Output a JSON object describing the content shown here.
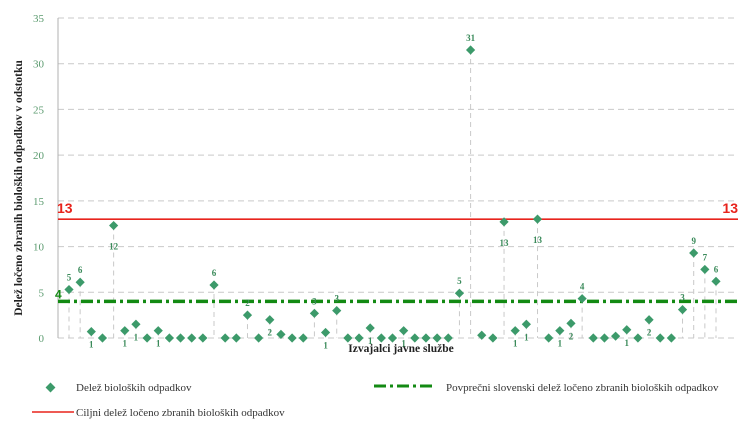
{
  "chart_data": {
    "type": "scatter",
    "xlabel": "Izvajalci javne službe",
    "ylabel": "Delež ločeno zbranih bioloških odpadkov v odstotku",
    "ylim": [
      0,
      35
    ],
    "yticks": [
      "0",
      "5",
      "10",
      "15",
      "20",
      "25",
      "30",
      "35"
    ],
    "grid": true,
    "series": [
      {
        "name": "Delež bioloških odpadkov",
        "color": "#3c9a6a",
        "marker": "diamond",
        "values": [
          5.3,
          6.1,
          0.7,
          0.0,
          12.3,
          0.8,
          1.5,
          0.0,
          0.8,
          0.0,
          0.0,
          0.0,
          0.0,
          5.8,
          0.0,
          0.0,
          2.5,
          0.0,
          2.0,
          0.4,
          0.0,
          0.0,
          2.7,
          0.6,
          3.0,
          0.0,
          0.0,
          1.1,
          0.0,
          0.0,
          0.8,
          0.0,
          0.0,
          0.0,
          0.0,
          4.9,
          31.5,
          0.3,
          0.0,
          12.7,
          0.8,
          1.5,
          13.0,
          0.0,
          0.8,
          1.6,
          4.3,
          0.0,
          0.0,
          0.2,
          0.9,
          0.0,
          2.0,
          0.0,
          0.0,
          3.1,
          9.3,
          7.5,
          6.2
        ],
        "labels": [
          "5",
          "6",
          "1",
          "",
          "12",
          "1",
          "1",
          "",
          "1",
          "",
          "",
          "",
          "",
          "6",
          "",
          "",
          "2",
          "",
          "2",
          "",
          "",
          "",
          "3",
          "1",
          "3",
          "",
          "",
          "1",
          "",
          "",
          "1",
          "",
          "",
          "",
          "",
          "5",
          "31",
          "",
          "",
          "13",
          "1",
          "1",
          "13",
          "",
          "1",
          "2",
          "4",
          "",
          "",
          "",
          "1",
          "",
          "2",
          "",
          "",
          "3",
          "9",
          "7",
          "6"
        ]
      }
    ],
    "reference_lines": [
      {
        "name": "Povprečni slovenski delež ločeno zbranih bioloških odpadkov",
        "value": 4,
        "label": "4",
        "color": "#138a13",
        "style": "dash-dot"
      },
      {
        "name": "Ciljni delež ločeno zbranih bioloških odpadkov",
        "value": 13,
        "label": "13",
        "color": "#e8231c",
        "style": "solid"
      }
    ],
    "legend": [
      "Delež bioloških odpadkov",
      "Povprečni slovenski delež ločeno zbranih bioloških odpadkov",
      "Ciljni delež ločeno zbranih bioloških odpadkov"
    ],
    "legend_position": "bottom"
  }
}
